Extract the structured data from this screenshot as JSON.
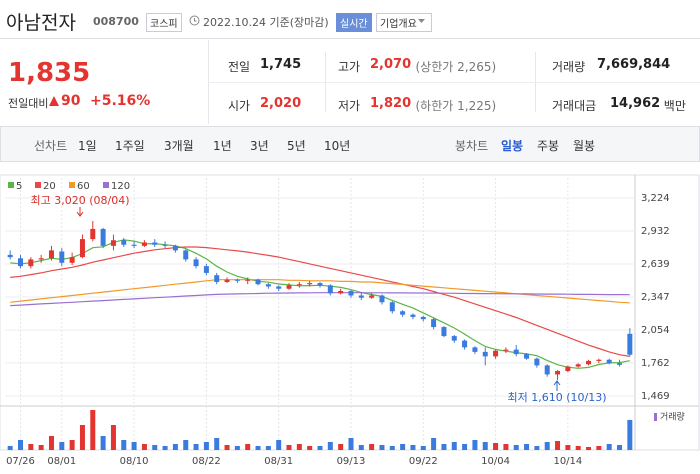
{
  "header": {
    "name": "아남전자",
    "code": "008700",
    "market": "코스피",
    "date": "2022.10.24 기준(장마감)",
    "realtime": "실시간",
    "company_info": "기업개요"
  },
  "price": {
    "current": "1,835",
    "change_label": "전일대비",
    "change": "90",
    "change_pct": "+5.16%"
  },
  "quote": [
    {
      "label": "전일",
      "value": "1,745"
    },
    {
      "label": "고가",
      "value": "2,070",
      "note": "(상한가 2,265)"
    },
    {
      "label": "거래량",
      "value": "7,669,844"
    },
    {
      "label": "시가",
      "value": "2,020"
    },
    {
      "label": "저가",
      "value": "1,820",
      "note": "(하한가 1,225)"
    },
    {
      "label": "거래대금",
      "value": "14,962",
      "note": "백만"
    }
  ],
  "tabs": {
    "line_label": "선차트",
    "line": [
      "1일",
      "1주일",
      "3개월",
      "1년",
      "3년",
      "5년",
      "10년"
    ],
    "candle_label": "봉차트",
    "candle": [
      "일봉",
      "주봉",
      "월봉"
    ]
  },
  "chart_data": {
    "type": "candlestick",
    "categories": [
      null,
      "07/26",
      null,
      null,
      null,
      "08/01",
      null,
      null,
      null,
      null,
      null,
      null,
      "08/10",
      null,
      null,
      null,
      null,
      null,
      null,
      "08/22",
      null,
      null,
      null,
      null,
      null,
      null,
      "08/31",
      null,
      null,
      null,
      null,
      null,
      null,
      "09/13",
      null,
      null,
      null,
      null,
      null,
      null,
      "09/22",
      null,
      null,
      null,
      null,
      null,
      null,
      "10/04",
      null,
      null,
      null,
      null,
      null,
      null,
      "10/14",
      null,
      null,
      null,
      null,
      null,
      null
    ],
    "open": [
      2720,
      2690,
      2620,
      2680,
      2690,
      2750,
      2650,
      2700,
      2860,
      2950,
      2800,
      2850,
      2810,
      2800,
      2830,
      2810,
      2800,
      2760,
      2680,
      2620,
      2540,
      2480,
      2500,
      2490,
      2500,
      2460,
      2440,
      2420,
      2450,
      2460,
      2470,
      2450,
      2380,
      2400,
      2360,
      2340,
      2360,
      2300,
      2220,
      2190,
      2170,
      2150,
      2080,
      2000,
      1960,
      1900,
      1860,
      1820,
      1870,
      1880,
      1840,
      1800,
      1740,
      1660,
      1690,
      1730,
      1750,
      1780,
      1790,
      1760,
      2020
    ],
    "high": [
      2760,
      2720,
      2700,
      2720,
      2800,
      2780,
      2740,
      2900,
      3020,
      2960,
      2900,
      2870,
      2840,
      2850,
      2860,
      2840,
      2810,
      2770,
      2700,
      2640,
      2560,
      2520,
      2510,
      2520,
      2510,
      2470,
      2450,
      2470,
      2480,
      2490,
      2480,
      2460,
      2420,
      2410,
      2390,
      2380,
      2370,
      2310,
      2230,
      2200,
      2180,
      2160,
      2090,
      2010,
      1970,
      1910,
      1900,
      1880,
      1900,
      1920,
      1850,
      1810,
      1750,
      1700,
      1740,
      1760,
      1790,
      1800,
      1800,
      1790,
      2070
    ],
    "low": [
      2680,
      2600,
      2600,
      2650,
      2670,
      2620,
      2630,
      2690,
      2840,
      2780,
      2760,
      2790,
      2780,
      2790,
      2790,
      2780,
      2740,
      2660,
      2600,
      2540,
      2460,
      2470,
      2470,
      2460,
      2450,
      2420,
      2400,
      2410,
      2430,
      2440,
      2430,
      2360,
      2370,
      2340,
      2320,
      2330,
      2280,
      2200,
      2170,
      2150,
      2130,
      2060,
      1990,
      1940,
      1880,
      1840,
      1740,
      1800,
      1850,
      1820,
      1790,
      1720,
      1640,
      1610,
      1680,
      1720,
      1740,
      1760,
      1750,
      1730,
      1820
    ],
    "close": [
      2700,
      2620,
      2680,
      2690,
      2760,
      2650,
      2700,
      2860,
      2950,
      2800,
      2850,
      2810,
      2800,
      2830,
      2810,
      2800,
      2760,
      2680,
      2620,
      2560,
      2480,
      2500,
      2490,
      2500,
      2460,
      2440,
      2420,
      2450,
      2460,
      2470,
      2450,
      2380,
      2400,
      2360,
      2340,
      2360,
      2300,
      2220,
      2190,
      2170,
      2150,
      2080,
      2000,
      1960,
      1900,
      1860,
      1820,
      1870,
      1880,
      1840,
      1800,
      1740,
      1660,
      1690,
      1730,
      1750,
      1780,
      1790,
      1760,
      1745,
      1835
    ],
    "up_color": "#e3342f",
    "down_color": "#3a7be0",
    "series": [
      {
        "name": "5",
        "color": "#5bb545",
        "values": [
          2650,
          2640,
          2650,
          2670,
          2690,
          2680,
          2696,
          2732,
          2784,
          2792,
          2832,
          2854,
          2842,
          2818,
          2820,
          2810,
          2800,
          2776,
          2734,
          2684,
          2620,
          2568,
          2530,
          2506,
          2486,
          2478,
          2462,
          2454,
          2446,
          2448,
          2450,
          2442,
          2432,
          2412,
          2386,
          2368,
          2352,
          2316,
          2282,
          2248,
          2206,
          2162,
          2118,
          2072,
          2018,
          1960,
          1908,
          1882,
          1866,
          1854,
          1842,
          1826,
          1784,
          1746,
          1724,
          1714,
          1722,
          1748,
          1762,
          1765,
          1782
        ]
      },
      {
        "name": "20",
        "color": "#e84a4a",
        "values": [
          2520,
          2530,
          2545,
          2560,
          2580,
          2595,
          2610,
          2630,
          2655,
          2675,
          2695,
          2715,
          2735,
          2750,
          2765,
          2775,
          2785,
          2790,
          2790,
          2785,
          2775,
          2765,
          2755,
          2745,
          2730,
          2715,
          2700,
          2680,
          2660,
          2640,
          2620,
          2600,
          2580,
          2560,
          2540,
          2520,
          2500,
          2480,
          2460,
          2440,
          2420,
          2395,
          2370,
          2345,
          2315,
          2285,
          2255,
          2225,
          2195,
          2165,
          2130,
          2095,
          2060,
          2025,
          1990,
          1955,
          1920,
          1890,
          1860,
          1835,
          1820
        ]
      },
      {
        "name": "60",
        "color": "#f09a2a",
        "values": [
          2300,
          2310,
          2320,
          2330,
          2340,
          2350,
          2360,
          2370,
          2380,
          2390,
          2400,
          2410,
          2420,
          2430,
          2440,
          2450,
          2460,
          2470,
          2480,
          2490,
          2500,
          2500,
          2500,
          2500,
          2500,
          2500,
          2500,
          2495,
          2495,
          2490,
          2490,
          2490,
          2485,
          2485,
          2480,
          2480,
          2472,
          2465,
          2458,
          2450,
          2443,
          2435,
          2428,
          2420,
          2413,
          2405,
          2398,
          2390,
          2383,
          2375,
          2368,
          2360,
          2353,
          2345,
          2338,
          2330,
          2323,
          2315,
          2308,
          2300,
          2295
        ]
      },
      {
        "name": "120",
        "color": "#9a6fd2",
        "values": [
          2270,
          2275,
          2280,
          2285,
          2290,
          2295,
          2300,
          2305,
          2310,
          2315,
          2320,
          2325,
          2330,
          2335,
          2340,
          2345,
          2350,
          2355,
          2360,
          2365,
          2370,
          2372,
          2374,
          2376,
          2378,
          2380,
          2381,
          2382,
          2383,
          2384,
          2385,
          2385,
          2385,
          2385,
          2385,
          2384,
          2384,
          2383,
          2383,
          2382,
          2382,
          2381,
          2380,
          2379,
          2378,
          2378,
          2377,
          2376,
          2375,
          2375,
          2374,
          2373,
          2372,
          2372,
          2371,
          2370,
          2370,
          2369,
          2368,
          2368,
          2367
        ]
      }
    ],
    "volume_name": "거래량",
    "volume_color": "#9a6fd2",
    "volume": [
      1020000,
      2550000,
      1530000,
      1275000,
      3570000,
      2040000,
      2550000,
      6375000,
      10200000,
      3570000,
      6375000,
      2550000,
      2040000,
      1530000,
      1275000,
      1020000,
      1530000,
      2550000,
      1530000,
      2040000,
      3060000,
      1275000,
      1020000,
      1530000,
      1020000,
      1020000,
      2550000,
      1275000,
      1530000,
      1020000,
      1020000,
      2040000,
      1530000,
      3060000,
      1275000,
      1530000,
      1275000,
      1020000,
      1530000,
      1275000,
      1020000,
      3060000,
      1530000,
      2040000,
      1530000,
      2550000,
      2040000,
      1785000,
      1530000,
      1275000,
      1530000,
      1020000,
      2040000,
      2295000,
      1275000,
      1020000,
      765000,
      1020000,
      1530000,
      1275000,
      7669844
    ],
    "high_label": "최고 3,020 (08/04)",
    "low_label": "최저 1,610 (10/13)",
    "ylim": [
      1389,
      3313
    ],
    "yticks": [
      {
        "value": 1469,
        "label": "1,469"
      },
      {
        "value": 1762,
        "label": "1,762"
      },
      {
        "value": 2054,
        "label": "2,054"
      },
      {
        "value": 2347,
        "label": "2,347"
      },
      {
        "value": 2639,
        "label": "2,639"
      },
      {
        "value": 2932,
        "label": "2,932"
      },
      {
        "value": 3224,
        "label": "3,224"
      }
    ],
    "grid": true
  }
}
